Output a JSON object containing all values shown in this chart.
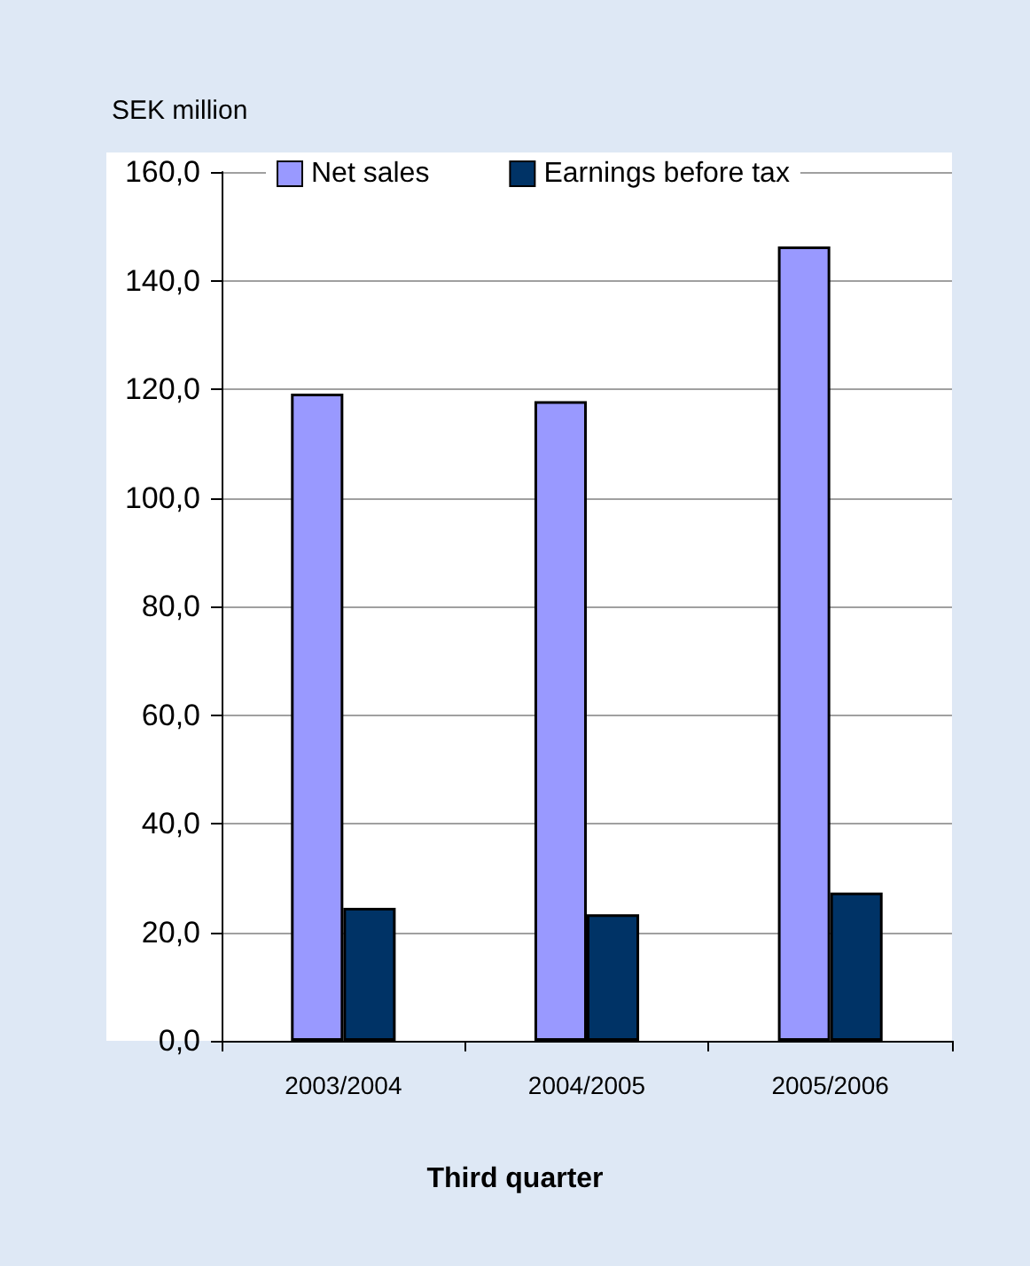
{
  "chart_data": {
    "type": "bar",
    "ylabel": "SEK million",
    "xlabel": "Third quarter",
    "categories": [
      "2003/2004",
      "2004/2005",
      "2005/2006"
    ],
    "series": [
      {
        "name": "Net sales",
        "color": "#9999ff",
        "values": [
          119.2,
          117.8,
          146.3
        ]
      },
      {
        "name": "Earnings before tax",
        "color": "#003366",
        "values": [
          24.5,
          23.3,
          27.3
        ]
      }
    ],
    "ylim": [
      0,
      160
    ],
    "yticks": [
      {
        "value": 0,
        "label": "0,0"
      },
      {
        "value": 20,
        "label": "20,0"
      },
      {
        "value": 40,
        "label": "40,0"
      },
      {
        "value": 60,
        "label": "60,0"
      },
      {
        "value": 80,
        "label": "80,0"
      },
      {
        "value": 100,
        "label": "100,0"
      },
      {
        "value": 120,
        "label": "120,0"
      },
      {
        "value": 140,
        "label": "140,0"
      },
      {
        "value": 160,
        "label": "160,0"
      }
    ],
    "grid": "y",
    "legend": "top"
  }
}
